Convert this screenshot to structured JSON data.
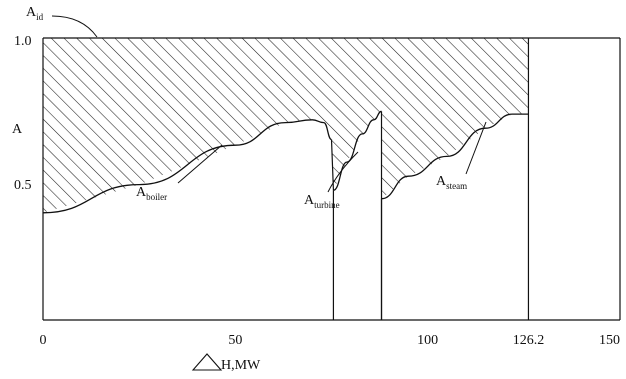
{
  "chart_data": {
    "type": "area",
    "x_ticks": [
      "0",
      "50",
      "100",
      "126.2",
      "150"
    ],
    "y_ticks": [
      "1.0",
      "0.5"
    ],
    "ylabel": "A",
    "xlabel_symbol": "triangle",
    "xlabel": "H,MW",
    "annotations": {
      "a_id": {
        "main": "A",
        "sub": "id"
      },
      "a_boiler": {
        "main": "A",
        "sub": "boiler"
      },
      "a_turbine": {
        "main": "A",
        "sub": "turbine"
      },
      "a_steam": {
        "main": "A",
        "sub": "steam"
      }
    },
    "ylim": [
      0,
      1.0
    ],
    "xlim": [
      0,
      150
    ],
    "curves": {
      "boiler": {
        "x": [
          0,
          25,
          50,
          63,
          70,
          73,
          75
        ],
        "y": [
          0.38,
          0.48,
          0.62,
          0.7,
          0.71,
          0.7,
          0.64
        ]
      },
      "turbine": {
        "x": [
          75.5,
          79,
          83,
          86,
          88
        ],
        "y": [
          0.46,
          0.56,
          0.66,
          0.71,
          0.74
        ]
      },
      "steam": {
        "x": [
          88,
          95,
          105,
          115,
          122,
          126.2
        ],
        "y": [
          0.43,
          0.51,
          0.58,
          0.68,
          0.73,
          0.73
        ]
      }
    },
    "vertical_lines": [
      75.5,
      88,
      126.2
    ],
    "hatched_region": "between A_id = 1.0 and the curves, 0 to 126.2"
  }
}
